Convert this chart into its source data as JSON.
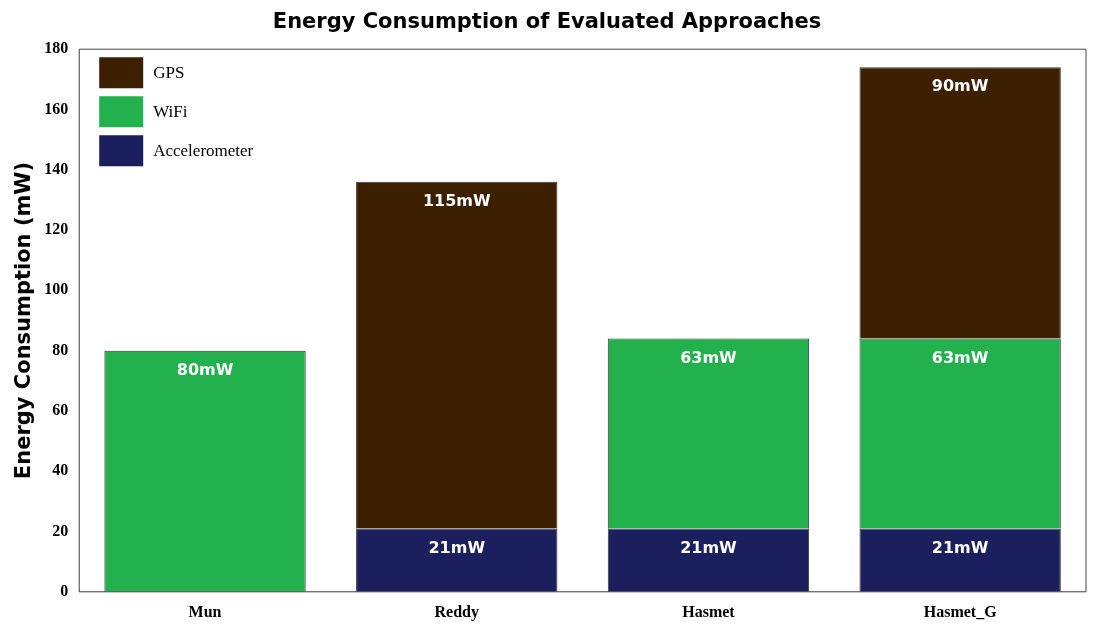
{
  "chart_data": {
    "type": "bar",
    "title": "Energy Consumption of Evaluated Approaches",
    "ylabel": "Energy Consumption (mW)",
    "categories": [
      "Mun",
      "Reddy",
      "Hasmet",
      "Hasmet_G"
    ],
    "stacked": true,
    "ylim": [
      0,
      180
    ],
    "yticks": [
      0,
      20,
      40,
      60,
      80,
      100,
      120,
      140,
      160,
      180
    ],
    "grid": false,
    "legend": "top left",
    "series": [
      {
        "name": "Accelerometer",
        "color": "#1c1f5e",
        "values": [
          0,
          21,
          21,
          21
        ],
        "value_labels": [
          null,
          "21mW",
          "21mW",
          "21mW"
        ]
      },
      {
        "name": "WiFi",
        "color": "#22b14c",
        "values": [
          80,
          0,
          63,
          63
        ],
        "value_labels": [
          "80mW",
          null,
          "63mW",
          "63mW"
        ]
      },
      {
        "name": "GPS",
        "color": "#3d2002",
        "values": [
          0,
          115,
          0,
          90
        ],
        "value_labels": [
          null,
          "115mW",
          null,
          "90mW"
        ]
      }
    ]
  }
}
